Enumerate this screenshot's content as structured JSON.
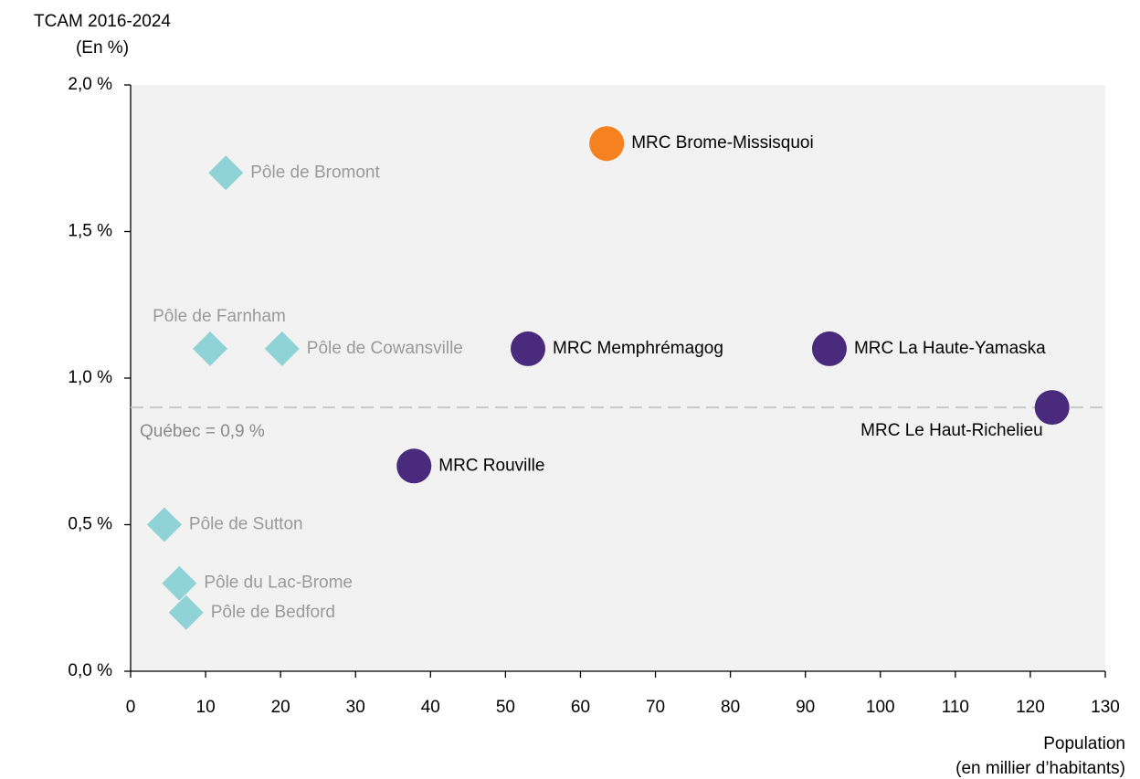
{
  "chart_data": {
    "type": "scatter",
    "y_label": [
      "TCAM 2016-2024",
      "(En %)"
    ],
    "x_label": [
      "Population",
      "(en millier d’habitants)"
    ],
    "xlim": [
      0,
      130
    ],
    "xticks": [
      0,
      10,
      20,
      30,
      40,
      50,
      60,
      70,
      80,
      90,
      100,
      110,
      120,
      130
    ],
    "ylim": [
      0,
      2.0
    ],
    "yticks": [
      {
        "value": 0,
        "label": "0,0 %"
      },
      {
        "value": 0.5,
        "label": "0,5 %"
      },
      {
        "value": 1.0,
        "label": "1,0 %"
      },
      {
        "value": 1.5,
        "label": "1,5 %"
      },
      {
        "value": 2.0,
        "label": "2,0 %"
      }
    ],
    "reference_line": {
      "value": 0.9,
      "label": "Québec = 0,9 %",
      "color": "#c8c8c8"
    },
    "series": [
      {
        "marker": "diamond",
        "color": "#8fd3d6",
        "label_color": "#9a9a9a",
        "labels": [
          "Pôle de Bromont",
          "Pôle de Farnham",
          "Pôle de Cowansville",
          "Pôle de Sutton",
          "Pôle du Lac-Brome",
          "Pôle de Bedford"
        ],
        "x": [
          12.7,
          10.6,
          20.2,
          4.5,
          6.5,
          7.4
        ],
        "values": [
          1.7,
          1.1,
          1.1,
          0.5,
          0.3,
          0.2
        ]
      },
      {
        "marker": "circle",
        "color": "#4a2a7c",
        "label_color": "#000000",
        "labels": [
          "MRC Memphrémagog",
          "MRC La Haute-Yamaska",
          "MRC Le Haut-Richelieu",
          "MRC Rouville"
        ],
        "x": [
          53.0,
          93.2,
          122.9,
          37.8
        ],
        "values": [
          1.1,
          1.1,
          0.9,
          0.7
        ]
      },
      {
        "marker": "circle",
        "color": "#f5821f",
        "label_color": "#000000",
        "labels": [
          "MRC Brome-Missisquoi"
        ],
        "x": [
          63.5
        ],
        "values": [
          1.8
        ]
      }
    ]
  }
}
